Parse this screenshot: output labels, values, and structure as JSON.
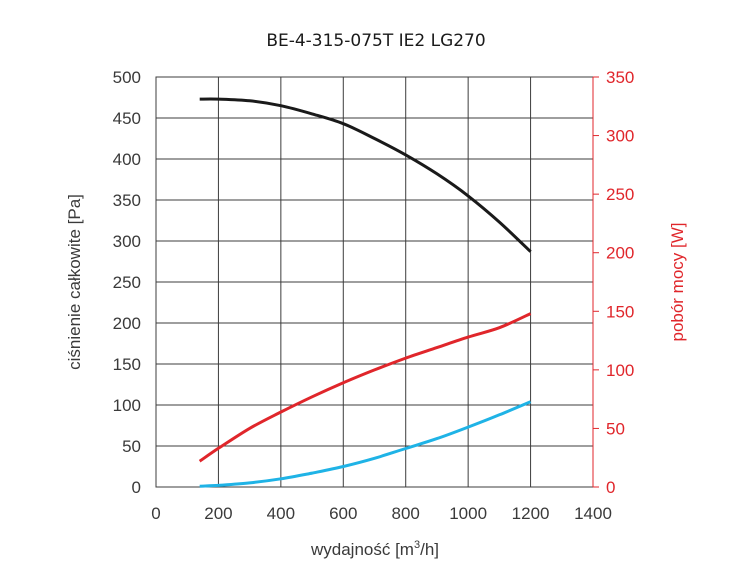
{
  "chart_data": {
    "type": "line",
    "title": "BE-4-315-075T IE2 LG270",
    "xlabel_main": "wydajność [m",
    "xlabel_sup": "3",
    "xlabel_end": "/h]",
    "ylabel": "ciśnienie całkowite [Pa]",
    "y2label": "pobór mocy [W]",
    "xlim": [
      0,
      1400
    ],
    "ylim": [
      0,
      500
    ],
    "y2lim": [
      0,
      350
    ],
    "x_ticks": [
      "0",
      "200",
      "400",
      "600",
      "800",
      "1000",
      "1200",
      "1400"
    ],
    "y_ticks": [
      "0",
      "50",
      "100",
      "150",
      "200",
      "250",
      "300",
      "350",
      "400",
      "450",
      "500"
    ],
    "y2_ticks": [
      "0",
      "50",
      "100",
      "150",
      "200",
      "250",
      "300",
      "350"
    ],
    "grid": true,
    "series": [
      {
        "axis": "left",
        "color": "#1a1a1a",
        "x": [
          140,
          200,
          300,
          400,
          500,
          600,
          700,
          800,
          900,
          1000,
          1100,
          1200
        ],
        "y": [
          473,
          473,
          471,
          465,
          455,
          443,
          425,
          405,
          382,
          355,
          323,
          287
        ]
      },
      {
        "axis": "right",
        "color": "#e0262b",
        "x": [
          140,
          200,
          300,
          400,
          500,
          600,
          700,
          800,
          900,
          1000,
          1100,
          1200
        ],
        "y": [
          22,
          33,
          50,
          64,
          77,
          89,
          100,
          110,
          119,
          128,
          136,
          148
        ]
      },
      {
        "axis": "left",
        "color": "#1fb3e6",
        "x": [
          140,
          200,
          300,
          400,
          500,
          600,
          700,
          800,
          900,
          1000,
          1100,
          1200
        ],
        "y": [
          1,
          2,
          5,
          10,
          17,
          25,
          35,
          47,
          59,
          73,
          88,
          104
        ]
      }
    ]
  }
}
